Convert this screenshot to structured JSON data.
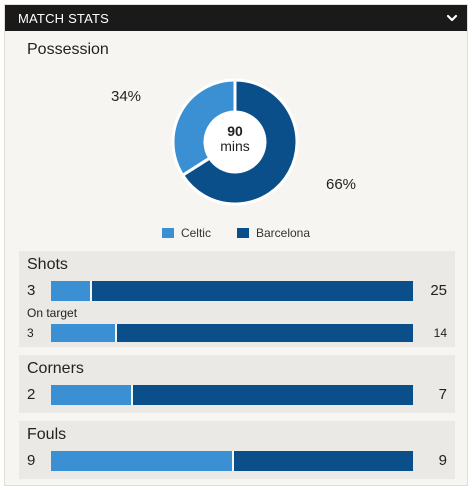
{
  "header": {
    "title": "MATCH STATS",
    "toggle_icon": "chevron-down-icon"
  },
  "possession": {
    "title": "Possession",
    "celtic_pct_label": "34%",
    "barcelona_pct_label": "66%",
    "celtic_value": 34,
    "barcelona_value": 66,
    "center_value": "90",
    "center_label": "mins"
  },
  "legend": {
    "team_a": "Celtic",
    "team_b": "Barcelona"
  },
  "colors": {
    "team_a": "#3b8fd3",
    "team_b": "#0b4f8a"
  },
  "stats": {
    "shots": {
      "title": "Shots",
      "a": 3,
      "b": 25,
      "a_label": "3",
      "b_label": "25",
      "on_target": {
        "label": "On target",
        "a": 3,
        "b": 14,
        "a_label": "3",
        "b_label": "14"
      }
    },
    "corners": {
      "title": "Corners",
      "a": 2,
      "b": 7,
      "a_label": "2",
      "b_label": "7"
    },
    "fouls": {
      "title": "Fouls",
      "a": 9,
      "b": 9,
      "a_label": "9",
      "b_label": "9"
    }
  }
}
